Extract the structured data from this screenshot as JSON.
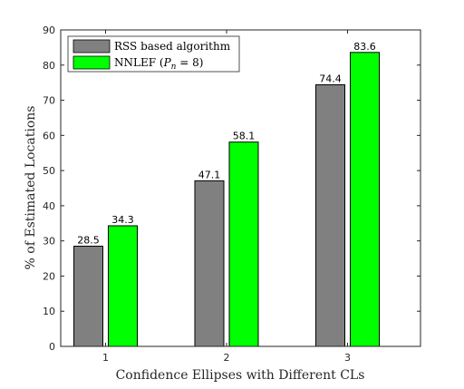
{
  "chart_data": {
    "type": "bar",
    "title": "",
    "xlabel": "Confidence Ellipses with Different CLs",
    "ylabel": "% of Estimated Locations",
    "categories": [
      "1",
      "2",
      "3"
    ],
    "ylim": [
      0,
      90
    ],
    "yticks": [
      "0",
      "10",
      "20",
      "30",
      "40",
      "50",
      "60",
      "70",
      "80",
      "90"
    ],
    "series": [
      {
        "name": "RSS based algorithm",
        "color": "#808080",
        "values": [
          28.5,
          47.1,
          74.4
        ],
        "labels": [
          "28.5",
          "47.1",
          "74.4"
        ]
      },
      {
        "name": "NNLEF (P_n = 8)",
        "name_base": "NNLEF (",
        "name_sym": "P",
        "name_sub": "n",
        "name_rest": " = 8)",
        "color": "#00ff00",
        "values": [
          34.3,
          58.1,
          83.6
        ],
        "labels": [
          "34.3",
          "58.1",
          "83.6"
        ]
      }
    ],
    "legend_position": "top-left",
    "grid": false
  }
}
